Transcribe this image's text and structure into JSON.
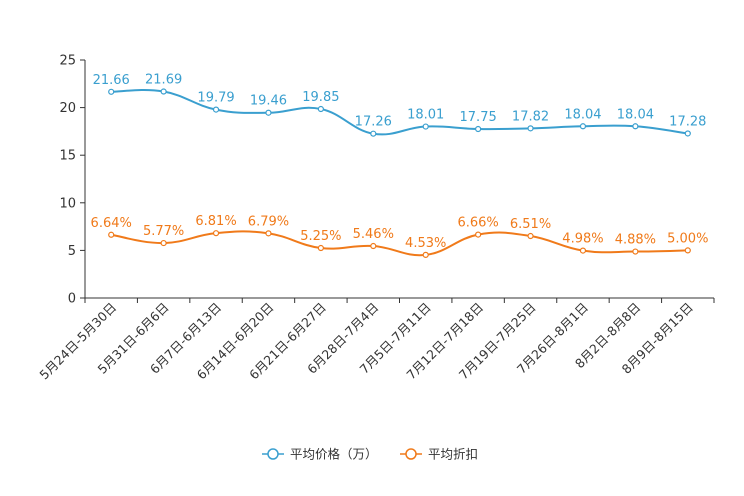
{
  "chart_data": {
    "type": "line",
    "title": "",
    "xlabel": "",
    "ylabel": "",
    "ylim": [
      0,
      25
    ],
    "yticks": [
      0,
      5,
      10,
      15,
      20,
      25
    ],
    "categories": [
      "5月24日-5月30日",
      "5月31日-6月6日",
      "6月7日-6月13日",
      "6月14日-6月20日",
      "6月21日-6月27日",
      "6月28日-7月4日",
      "7月5日-7月11日",
      "7月12日-7月18日",
      "7月19日-7月25日",
      "7月26日-8月1日",
      "8月2日-8月8日",
      "8月9日-8月15日"
    ],
    "series": [
      {
        "name": "平均价格（万）",
        "color": "#3a9fcf",
        "values": [
          21.66,
          21.69,
          19.79,
          19.46,
          19.85,
          17.26,
          18.01,
          17.75,
          17.82,
          18.04,
          18.04,
          17.28
        ],
        "labels": [
          "21.66",
          "21.69",
          "19.79",
          "19.46",
          "19.85",
          "17.26",
          "18.01",
          "17.75",
          "17.82",
          "18.04",
          "18.04",
          "17.28"
        ]
      },
      {
        "name": "平均折扣",
        "color": "#f07a1a",
        "values": [
          6.64,
          5.77,
          6.81,
          6.79,
          5.25,
          5.46,
          4.53,
          6.66,
          6.51,
          4.98,
          4.88,
          5.0
        ],
        "labels": [
          "6.64%",
          "5.77%",
          "6.81%",
          "6.79%",
          "5.25%",
          "5.46%",
          "4.53%",
          "6.66%",
          "6.51%",
          "4.98%",
          "4.88%",
          "5.00%"
        ]
      }
    ],
    "grid": false,
    "legend_position": "bottom-center"
  }
}
